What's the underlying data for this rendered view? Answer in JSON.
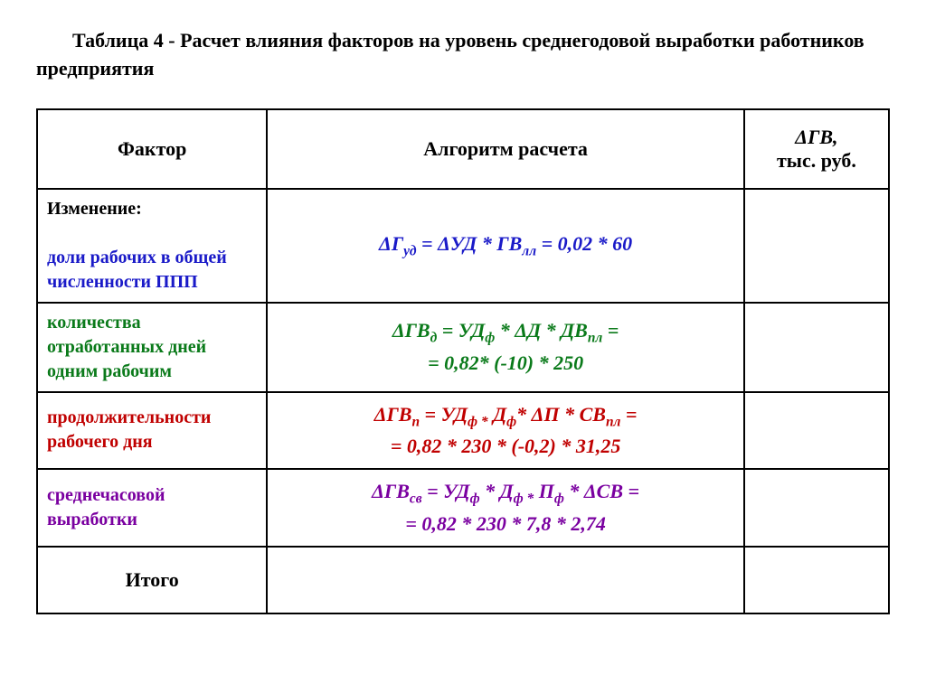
{
  "title": "Таблица 4 - Расчет влияния факторов на уровень среднегодовой выработки работников предприятия",
  "columns": {
    "factor": "Фактор",
    "algo": "Алгоритм расчета",
    "dgv_line1": "ΔГВ,",
    "dgv_line2": "тыс. руб."
  },
  "colors": {
    "row1": "#1a1ac8",
    "row2": "#0a7a1a",
    "row3": "#c00000",
    "row4": "#7a00a0",
    "black": "#000000"
  },
  "rows": [
    {
      "factor_prefix": "Изменение:",
      "factor": "доли рабочих в общей численности  ППП",
      "algo_html": "ΔГ<sub>уд</sub> = ΔУД * ГВ<sub>лл</sub> = 0,02 * 60",
      "dgv": ""
    },
    {
      "factor": "количества отработанных дней одним рабочим",
      "algo_html": "ΔГВ<sub>д</sub> = УД<sub>ф</sub> * ΔД * ДВ<sub>пл</sub> =<br>= 0,82* (-10) * 250",
      "dgv": ""
    },
    {
      "factor": "продолжительности рабочего дня",
      "algo_html": "ΔГВ<sub>п</sub> = УД<sub>ф *</sub> Д<sub>ф</sub>* ΔП * СВ<sub>пл</sub> =<br>= 0,82 * 230 * (-0,2) * 31,25",
      "dgv": ""
    },
    {
      "factor": "среднечасовой выработки",
      "algo_html": "ΔГВ<sub>св</sub> = УД<sub>ф</sub> * Д<sub>ф *</sub> П<sub>ф</sub> * ΔСВ =<br>= 0,82 * 230 * 7,8 * 2,74",
      "dgv": ""
    }
  ],
  "itogo": "Итого"
}
